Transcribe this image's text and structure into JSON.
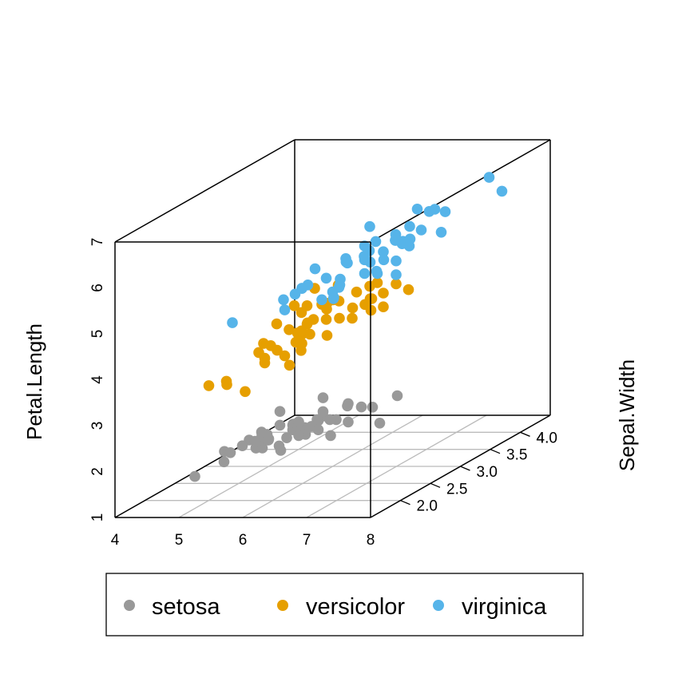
{
  "chart_data": {
    "type": "scatter",
    "projection": "3d",
    "xlabel": "",
    "ylabel": "Sepal.Width",
    "zlabel": "Petal.Length",
    "xlim": [
      4,
      8
    ],
    "ylim": [
      1.5,
      4.5
    ],
    "zlim": [
      1,
      7
    ],
    "x_ticks": [
      "4",
      "5",
      "6",
      "7",
      "8"
    ],
    "y_ticks": [
      "2.0",
      "2.5",
      "3.0",
      "3.5",
      "4.0",
      "4."
    ],
    "z_ticks": [
      "1",
      "2",
      "3",
      "4",
      "5",
      "6",
      "7"
    ],
    "grid": "bottom plane only",
    "legend_position": "bottom",
    "series": [
      {
        "name": "setosa",
        "color": "#999999",
        "points": [
          [
            5.1,
            3.5,
            1.4
          ],
          [
            4.9,
            3.0,
            1.4
          ],
          [
            4.7,
            3.2,
            1.3
          ],
          [
            4.6,
            3.1,
            1.5
          ],
          [
            5.0,
            3.6,
            1.4
          ],
          [
            5.4,
            3.9,
            1.7
          ],
          [
            4.6,
            3.4,
            1.4
          ],
          [
            5.0,
            3.4,
            1.5
          ],
          [
            4.4,
            2.9,
            1.4
          ],
          [
            4.9,
            3.1,
            1.5
          ],
          [
            5.4,
            3.7,
            1.5
          ],
          [
            4.8,
            3.4,
            1.6
          ],
          [
            4.8,
            3.0,
            1.4
          ],
          [
            4.3,
            3.0,
            1.1
          ],
          [
            5.8,
            4.0,
            1.2
          ],
          [
            5.7,
            4.4,
            1.5
          ],
          [
            5.4,
            3.9,
            1.3
          ],
          [
            5.1,
            3.5,
            1.4
          ],
          [
            5.7,
            3.8,
            1.7
          ],
          [
            5.1,
            3.8,
            1.5
          ],
          [
            5.4,
            3.4,
            1.7
          ],
          [
            5.1,
            3.7,
            1.5
          ],
          [
            4.6,
            3.6,
            1.0
          ],
          [
            5.1,
            3.3,
            1.7
          ],
          [
            4.8,
            3.4,
            1.9
          ],
          [
            5.0,
            3.0,
            1.6
          ],
          [
            5.0,
            3.4,
            1.6
          ],
          [
            5.2,
            3.5,
            1.5
          ],
          [
            5.2,
            3.4,
            1.4
          ],
          [
            4.7,
            3.2,
            1.6
          ],
          [
            4.8,
            3.1,
            1.6
          ],
          [
            5.4,
            3.4,
            1.5
          ],
          [
            5.2,
            4.1,
            1.5
          ],
          [
            5.5,
            4.2,
            1.4
          ],
          [
            4.9,
            3.1,
            1.5
          ],
          [
            5.0,
            3.2,
            1.2
          ],
          [
            5.5,
            3.5,
            1.3
          ],
          [
            4.9,
            3.6,
            1.4
          ],
          [
            4.4,
            3.0,
            1.3
          ],
          [
            5.1,
            3.4,
            1.5
          ],
          [
            5.0,
            3.5,
            1.3
          ],
          [
            4.5,
            2.3,
            1.3
          ],
          [
            4.4,
            3.2,
            1.3
          ],
          [
            5.0,
            3.5,
            1.6
          ],
          [
            5.1,
            3.8,
            1.9
          ],
          [
            4.8,
            3.0,
            1.4
          ],
          [
            5.1,
            3.8,
            1.6
          ],
          [
            4.6,
            3.2,
            1.4
          ],
          [
            5.3,
            3.7,
            1.5
          ],
          [
            5.0,
            3.3,
            1.4
          ]
        ]
      },
      {
        "name": "versicolor",
        "color": "#E69F00",
        "points": [
          [
            7.0,
            3.2,
            4.7
          ],
          [
            6.4,
            3.2,
            4.5
          ],
          [
            6.9,
            3.1,
            4.9
          ],
          [
            5.5,
            2.3,
            4.0
          ],
          [
            6.5,
            2.8,
            4.6
          ],
          [
            5.7,
            2.8,
            4.5
          ],
          [
            6.3,
            3.3,
            4.7
          ],
          [
            4.9,
            2.4,
            3.3
          ],
          [
            6.6,
            2.9,
            4.6
          ],
          [
            5.2,
            2.7,
            3.9
          ],
          [
            5.0,
            2.0,
            3.5
          ],
          [
            5.9,
            3.0,
            4.2
          ],
          [
            6.0,
            2.2,
            4.0
          ],
          [
            6.1,
            2.9,
            4.7
          ],
          [
            5.6,
            2.9,
            3.6
          ],
          [
            6.7,
            3.1,
            4.4
          ],
          [
            5.6,
            3.0,
            4.5
          ],
          [
            5.8,
            2.7,
            4.1
          ],
          [
            6.2,
            2.2,
            4.5
          ],
          [
            5.6,
            2.5,
            3.9
          ],
          [
            5.9,
            3.2,
            4.8
          ],
          [
            6.1,
            2.8,
            4.0
          ],
          [
            6.3,
            2.5,
            4.9
          ],
          [
            6.1,
            2.8,
            4.7
          ],
          [
            6.4,
            2.9,
            4.3
          ],
          [
            6.6,
            3.0,
            4.4
          ],
          [
            6.8,
            2.8,
            4.8
          ],
          [
            6.7,
            3.0,
            5.0
          ],
          [
            6.0,
            2.9,
            4.5
          ],
          [
            5.7,
            2.6,
            3.5
          ],
          [
            5.5,
            2.4,
            3.8
          ],
          [
            5.5,
            2.4,
            3.7
          ],
          [
            5.8,
            2.7,
            3.9
          ],
          [
            6.0,
            2.7,
            5.1
          ],
          [
            5.4,
            3.0,
            4.5
          ],
          [
            6.0,
            3.4,
            4.5
          ],
          [
            6.7,
            3.1,
            4.7
          ],
          [
            6.3,
            2.3,
            4.4
          ],
          [
            5.6,
            3.0,
            4.1
          ],
          [
            5.5,
            2.5,
            4.0
          ],
          [
            5.5,
            2.6,
            4.4
          ],
          [
            6.1,
            3.0,
            4.6
          ],
          [
            5.8,
            2.6,
            4.0
          ],
          [
            5.0,
            2.3,
            3.3
          ],
          [
            5.6,
            2.7,
            4.2
          ],
          [
            5.7,
            3.0,
            4.2
          ],
          [
            5.7,
            2.9,
            4.2
          ],
          [
            6.2,
            2.9,
            4.3
          ],
          [
            5.1,
            2.5,
            3.0
          ],
          [
            5.7,
            2.8,
            4.1
          ]
        ]
      },
      {
        "name": "virginica",
        "color": "#56B4E9",
        "points": [
          [
            6.3,
            3.3,
            6.0
          ],
          [
            5.8,
            2.7,
            5.1
          ],
          [
            7.1,
            3.0,
            5.9
          ],
          [
            6.3,
            2.9,
            5.6
          ],
          [
            6.5,
            3.0,
            5.8
          ],
          [
            7.6,
            3.0,
            6.6
          ],
          [
            4.9,
            2.5,
            4.5
          ],
          [
            7.3,
            2.9,
            6.3
          ],
          [
            6.7,
            2.5,
            5.8
          ],
          [
            7.2,
            3.6,
            6.1
          ],
          [
            6.5,
            3.2,
            5.1
          ],
          [
            6.4,
            2.7,
            5.3
          ],
          [
            6.8,
            3.0,
            5.5
          ],
          [
            5.7,
            2.5,
            5.0
          ],
          [
            5.8,
            2.8,
            5.1
          ],
          [
            6.4,
            3.2,
            5.3
          ],
          [
            6.5,
            3.0,
            5.5
          ],
          [
            7.7,
            3.8,
            6.7
          ],
          [
            7.7,
            2.6,
            6.9
          ],
          [
            6.0,
            2.2,
            5.0
          ],
          [
            6.9,
            3.2,
            5.7
          ],
          [
            5.6,
            2.8,
            4.9
          ],
          [
            7.7,
            2.8,
            6.7
          ],
          [
            6.3,
            2.7,
            4.9
          ],
          [
            6.7,
            3.3,
            5.7
          ],
          [
            7.2,
            3.2,
            6.0
          ],
          [
            6.2,
            2.8,
            4.8
          ],
          [
            6.1,
            3.0,
            4.9
          ],
          [
            6.4,
            2.8,
            5.6
          ],
          [
            7.2,
            3.0,
            5.8
          ],
          [
            7.4,
            2.8,
            6.1
          ],
          [
            7.9,
            3.8,
            6.4
          ],
          [
            6.4,
            2.8,
            5.6
          ],
          [
            6.3,
            2.8,
            5.1
          ],
          [
            6.1,
            2.6,
            5.6
          ],
          [
            7.7,
            3.0,
            6.1
          ],
          [
            6.3,
            3.4,
            5.6
          ],
          [
            6.4,
            3.1,
            5.5
          ],
          [
            6.0,
            3.0,
            4.8
          ],
          [
            6.9,
            3.1,
            5.4
          ],
          [
            6.7,
            3.1,
            5.6
          ],
          [
            6.9,
            3.1,
            5.1
          ],
          [
            5.8,
            2.7,
            5.1
          ],
          [
            6.8,
            3.2,
            5.9
          ],
          [
            6.7,
            3.3,
            5.7
          ],
          [
            6.7,
            3.0,
            5.2
          ],
          [
            6.3,
            2.5,
            5.0
          ],
          [
            6.5,
            3.0,
            5.2
          ],
          [
            6.2,
            3.4,
            5.4
          ],
          [
            5.9,
            3.0,
            5.1
          ]
        ]
      }
    ]
  }
}
